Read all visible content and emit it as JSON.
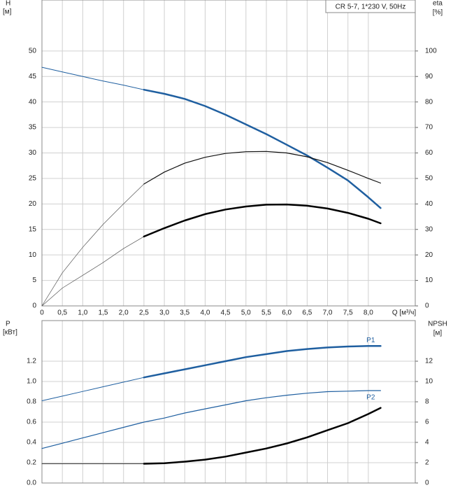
{
  "chart_data": [
    {
      "type": "line",
      "title": "CR 5-7, 1*230 V, 50Hz",
      "ylabel": "H",
      "yunit": "[м]",
      "y2label": "eta",
      "y2unit": "[%]",
      "xlabel": "Q [м³/ч]",
      "x": [
        0,
        0.5,
        1.0,
        1.5,
        2.0,
        2.5,
        3.0,
        3.5,
        4.0,
        4.5,
        5.0,
        5.5,
        6.0,
        6.5,
        7.0,
        7.5,
        8.0,
        8.3
      ],
      "xlim": [
        0,
        9.15
      ],
      "xticks": [
        0,
        {
          "value": 0.5,
          "label": "0,5"
        },
        {
          "value": 1.0,
          "label": "1,0"
        },
        {
          "value": 1.5,
          "label": "1,5"
        },
        {
          "value": 2.0,
          "label": "2,0"
        },
        {
          "value": 2.5,
          "label": "2,5"
        },
        {
          "value": 3.0,
          "label": "3,0"
        },
        {
          "value": 3.5,
          "label": "3,5"
        },
        {
          "value": 4.0,
          "label": "4,0"
        },
        {
          "value": 4.5,
          "label": "4,5"
        },
        {
          "value": 5.0,
          "label": "5,0"
        },
        {
          "value": 5.5,
          "label": "5,5"
        },
        {
          "value": 6.0,
          "label": "6,0"
        },
        {
          "value": 6.5,
          "label": "6,5"
        },
        {
          "value": 7.0,
          "label": "7,0"
        },
        {
          "value": 7.5,
          "label": "7,5"
        },
        {
          "value": 8.0,
          "label": "8,0"
        }
      ],
      "ylim": [
        0,
        60
      ],
      "yticks": [
        0,
        5,
        10,
        15,
        20,
        25,
        30,
        35,
        40,
        45,
        50
      ],
      "y2lim": [
        0,
        120
      ],
      "y2ticks": [
        0,
        10,
        20,
        30,
        40,
        50,
        60,
        70,
        80,
        90,
        100
      ],
      "grid": true,
      "series": [
        {
          "color": "#1f5fa0",
          "linewidth": 1,
          "values": [
            46.8,
            45.9,
            45.0,
            44.1,
            43.3,
            42.4,
            null,
            null,
            null,
            null,
            null,
            null,
            null,
            null,
            null,
            null,
            null,
            null
          ]
        },
        {
          "color": "#1f5fa0",
          "linewidth": 2.5,
          "values": [
            null,
            null,
            null,
            null,
            null,
            42.4,
            41.6,
            40.6,
            39.2,
            37.5,
            35.6,
            33.7,
            31.6,
            29.5,
            27.1,
            24.6,
            21.3,
            19.2
          ]
        },
        {
          "color": "#555555",
          "linewidth": 0.7,
          "axis": "y2",
          "values": [
            0,
            13,
            23,
            32,
            40,
            47.8,
            null,
            null,
            null,
            null,
            null,
            null,
            null,
            null,
            null,
            null,
            null,
            null
          ]
        },
        {
          "color": "#111111",
          "linewidth": 1.2,
          "axis": "y2",
          "values": [
            null,
            null,
            null,
            null,
            null,
            47.8,
            52.5,
            56,
            58.3,
            59.8,
            60.5,
            60.6,
            60,
            58.5,
            56.2,
            53.2,
            50,
            48.2
          ]
        },
        {
          "color": "#555555",
          "linewidth": 0.7,
          "axis": "y2",
          "values": [
            0,
            7,
            12,
            17,
            22.5,
            27.2,
            null,
            null,
            null,
            null,
            null,
            null,
            null,
            null,
            null,
            null,
            null,
            null
          ]
        },
        {
          "color": "#000000",
          "linewidth": 2.5,
          "axis": "y2",
          "values": [
            null,
            null,
            null,
            null,
            null,
            27.2,
            30.5,
            33.5,
            36,
            37.8,
            39,
            39.7,
            39.8,
            39.3,
            38.2,
            36.5,
            34.2,
            32.4
          ]
        }
      ]
    },
    {
      "type": "line",
      "ylabel": "P",
      "yunit": "[кВт]",
      "y2label": "NPSH",
      "y2unit": "[м]",
      "x": [
        0,
        0.5,
        1.0,
        1.5,
        2.0,
        2.5,
        3.0,
        3.5,
        4.0,
        4.5,
        5.0,
        5.5,
        6.0,
        6.5,
        7.0,
        7.5,
        8.0,
        8.3
      ],
      "xlim": [
        0,
        9.15
      ],
      "xticks": [
        0,
        0.5,
        1.0,
        1.5,
        2.0,
        2.5,
        3.0,
        3.5,
        4.0,
        4.5,
        5.0,
        5.5,
        6.0,
        6.5,
        7.0,
        7.5,
        8.0
      ],
      "ylim": [
        0,
        1.6
      ],
      "yticks": [
        {
          "value": 0,
          "label": "0.0"
        },
        0.2,
        0.4,
        0.6,
        0.8,
        {
          "value": 1.0,
          "label": "1.0"
        },
        1.2
      ],
      "y2lim": [
        0,
        16
      ],
      "y2ticks": [
        0,
        2,
        4,
        6,
        8,
        10,
        12
      ],
      "grid": true,
      "series": [
        {
          "color": "#1f5fa0",
          "linewidth": 1,
          "values": [
            0.81,
            0.856,
            0.902,
            0.948,
            0.994,
            1.04,
            null,
            null,
            null,
            null,
            null,
            null,
            null,
            null,
            null,
            null,
            null,
            null
          ]
        },
        {
          "name": "P1",
          "color": "#1f5fa0",
          "linewidth": 2.5,
          "values": [
            null,
            null,
            null,
            null,
            null,
            1.04,
            1.08,
            1.12,
            1.16,
            1.2,
            1.24,
            1.27,
            1.3,
            1.32,
            1.335,
            1.345,
            1.35,
            1.35
          ]
        },
        {
          "name": "P2",
          "color": "#1f5fa0",
          "linewidth": 1.2,
          "values": [
            0.34,
            0.392,
            0.444,
            0.496,
            0.548,
            0.6,
            0.64,
            0.69,
            0.73,
            0.77,
            0.81,
            0.84,
            0.865,
            0.885,
            0.9,
            0.905,
            0.91,
            0.91
          ]
        },
        {
          "color": "#333333",
          "linewidth": 1,
          "axis": "y2",
          "values": [
            1.9,
            1.9,
            1.9,
            1.9,
            1.9,
            1.9,
            null,
            null,
            null,
            null,
            null,
            null,
            null,
            null,
            null,
            null,
            null,
            null
          ]
        },
        {
          "color": "#000000",
          "linewidth": 2.5,
          "axis": "y2",
          "values": [
            null,
            null,
            null,
            null,
            null,
            1.9,
            1.95,
            2.1,
            2.3,
            2.6,
            3.0,
            3.4,
            3.9,
            4.5,
            5.2,
            5.9,
            6.8,
            7.4
          ]
        }
      ]
    }
  ]
}
